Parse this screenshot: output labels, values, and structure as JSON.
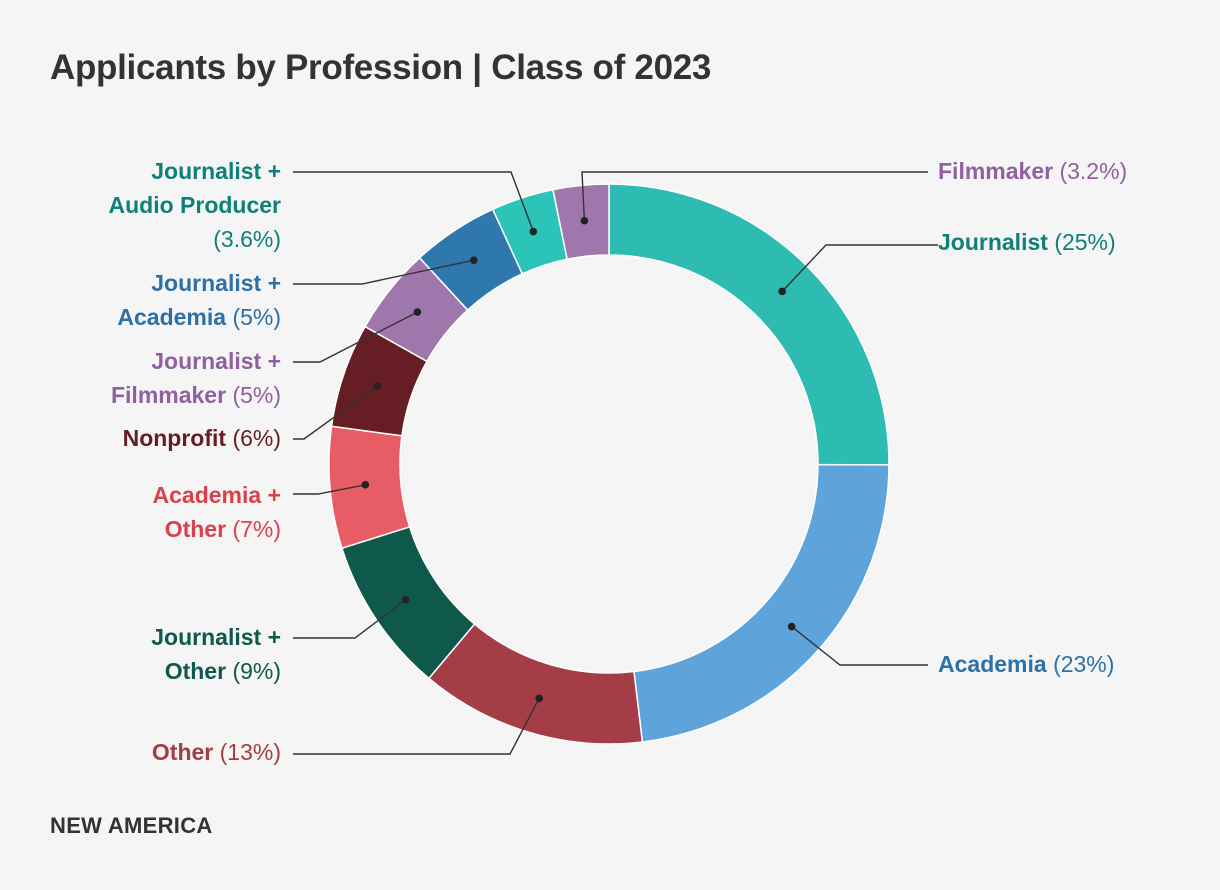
{
  "title": "Applicants by Profession | Class of 2023",
  "brand": "NEW AMERICA",
  "chart_data": {
    "type": "pie",
    "donut": true,
    "title": "Applicants by Profession | Class of 2023",
    "legend": "none",
    "slices": [
      {
        "name": "Journalist",
        "name_lines": [
          "Journalist"
        ],
        "value": 25,
        "label_pct": "(25%)",
        "color": "#2ebbb2",
        "text_color": "#0f8077"
      },
      {
        "name": "Academia",
        "name_lines": [
          "Academia"
        ],
        "value": 23,
        "label_pct": "(23%)",
        "color": "#5ea4da",
        "text_color": "#2d72a6"
      },
      {
        "name": "Other",
        "name_lines": [
          "Other"
        ],
        "value": 13,
        "label_pct": "(13%)",
        "color": "#a43d45",
        "text_color": "#a43d45"
      },
      {
        "name": "Journalist + Other",
        "name_lines": [
          "Journalist +",
          "Other"
        ],
        "value": 9,
        "label_pct": "(9%)",
        "color": "#0f594c",
        "text_color": "#0f594c"
      },
      {
        "name": "Academia + Other",
        "name_lines": [
          "Academia +",
          "Other"
        ],
        "value": 7,
        "label_pct": "(7%)",
        "color": "#e85c65",
        "text_color": "#d9414d"
      },
      {
        "name": "Nonprofit",
        "name_lines": [
          "Nonprofit"
        ],
        "value": 6,
        "label_pct": "(6%)",
        "color": "#661e24",
        "text_color": "#661e24"
      },
      {
        "name": "Journalist + Filmmaker",
        "name_lines": [
          "Journalist +",
          "Filmmaker"
        ],
        "value": 5,
        "label_pct": "(5%)",
        "color": "#a077ad",
        "text_color": "#9060a0"
      },
      {
        "name": "Journalist + Academia",
        "name_lines": [
          "Journalist +",
          "Academia"
        ],
        "value": 5,
        "label_pct": "(5%)",
        "color": "#2e78ae",
        "text_color": "#2e6fa8"
      },
      {
        "name": "Journalist + Audio Producer",
        "name_lines": [
          "Journalist +",
          "Audio Producer"
        ],
        "value": 3.6,
        "label_pct": "(3.6%)",
        "color": "#2cc4b8",
        "text_color": "#0f8077"
      },
      {
        "name": "Filmmaker",
        "name_lines": [
          "Filmmaker"
        ],
        "value": 3.2,
        "label_pct": "(3.2%)",
        "color": "#a077ad",
        "text_color": "#9060a0"
      }
    ]
  }
}
